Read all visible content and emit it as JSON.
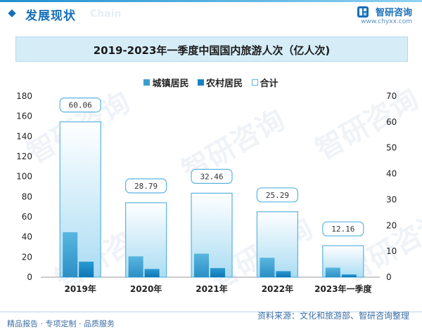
{
  "header": {
    "section_title": "发展现状",
    "section_title_ghost": "Chain",
    "brand_name": "智研咨询",
    "brand_url": "www.chyxx.com"
  },
  "watermark_text": "智研咨询",
  "chart_data": {
    "type": "bar",
    "title": "2019-2023年一季度中国国内旅游人次（亿人次)",
    "categories": [
      "2019年",
      "2020年",
      "2021年",
      "2022年",
      "2023年一季度"
    ],
    "series": [
      {
        "name": "城镇居民",
        "axis": "left",
        "values": [
          44.7,
          20.7,
          23.4,
          19.3,
          9.5
        ],
        "color": "#3a9fd0"
      },
      {
        "name": "农村居民",
        "axis": "left",
        "values": [
          15.4,
          8.1,
          9.0,
          6.0,
          2.7
        ],
        "color": "#1585c2"
      },
      {
        "name": "合计",
        "axis": "right",
        "values": [
          60.06,
          28.79,
          32.46,
          25.29,
          12.16
        ],
        "color": "#a8dcf3"
      }
    ],
    "total_labels": [
      "60.06",
      "28.79",
      "32.46",
      "25.29",
      "12.16"
    ],
    "y_left": {
      "min": 0,
      "max": 180,
      "step": 20,
      "ticks": [
        "0",
        "20",
        "40",
        "60",
        "80",
        "100",
        "120",
        "140",
        "160",
        "180"
      ]
    },
    "y_right": {
      "min": 0,
      "max": 70,
      "step": 10,
      "ticks": [
        "0",
        "10",
        "20",
        "30",
        "40",
        "50",
        "60",
        "70"
      ]
    },
    "grid": false,
    "legend_position": "top-center"
  },
  "footer": {
    "left": "精品报告 · 专项定制 · 品质服务",
    "right": "资料来源：文化和旅游部、智研咨询整理"
  }
}
